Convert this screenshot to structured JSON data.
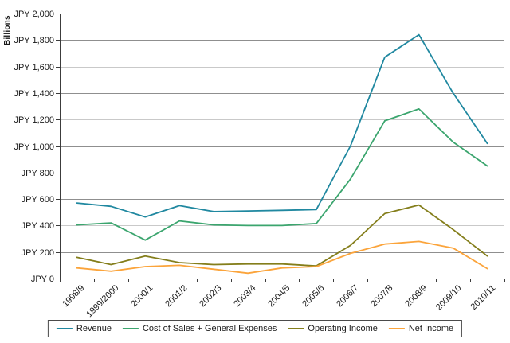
{
  "y_axis_title": "Billions",
  "colors": {
    "axis": "#3c3c3c",
    "grid_major": "#8f8f8f",
    "grid_minor": "#c9c9c9",
    "text": "#1a1a1a",
    "legend_border": "#4a4a4a"
  },
  "chart_data": {
    "type": "line",
    "title": "",
    "xlabel": "",
    "ylabel": "Billions",
    "ylim": [
      0,
      2000
    ],
    "y_tick_step": 200,
    "y_tick_labels": [
      "JPY 0",
      "JPY 200",
      "JPY 400",
      "JPY 600",
      "JPY 800",
      "JPY 1,000",
      "JPY 1,200",
      "JPY 1,400",
      "JPY 1,600",
      "JPY 1,800",
      "JPY 2,000"
    ],
    "grid": true,
    "legend_position": "bottom",
    "categories": [
      "1998/9",
      "1999/2000",
      "2000/1",
      "2001/2",
      "2002/3",
      "2003/4",
      "2004/5",
      "2005/6",
      "2006/7",
      "2007/8",
      "2008/9",
      "2009/10",
      "2010/11"
    ],
    "series": [
      {
        "name": "Revenue",
        "color": "#2088A0",
        "values": [
          570,
          545,
          465,
          550,
          505,
          510,
          515,
          520,
          1000,
          1670,
          1840,
          1400,
          1020
        ]
      },
      {
        "name": "Cost of Sales + General Expenses",
        "color": "#3BA56E",
        "values": [
          405,
          420,
          290,
          435,
          405,
          400,
          400,
          415,
          750,
          1190,
          1280,
          1030,
          850
        ]
      },
      {
        "name": "Operating Income",
        "color": "#847E1B",
        "values": [
          160,
          105,
          170,
          120,
          105,
          110,
          110,
          95,
          250,
          490,
          555,
          370,
          170
        ]
      },
      {
        "name": "Net Income",
        "color": "#FBA43B",
        "values": [
          80,
          55,
          90,
          100,
          70,
          40,
          80,
          90,
          190,
          260,
          280,
          230,
          75
        ]
      }
    ]
  }
}
